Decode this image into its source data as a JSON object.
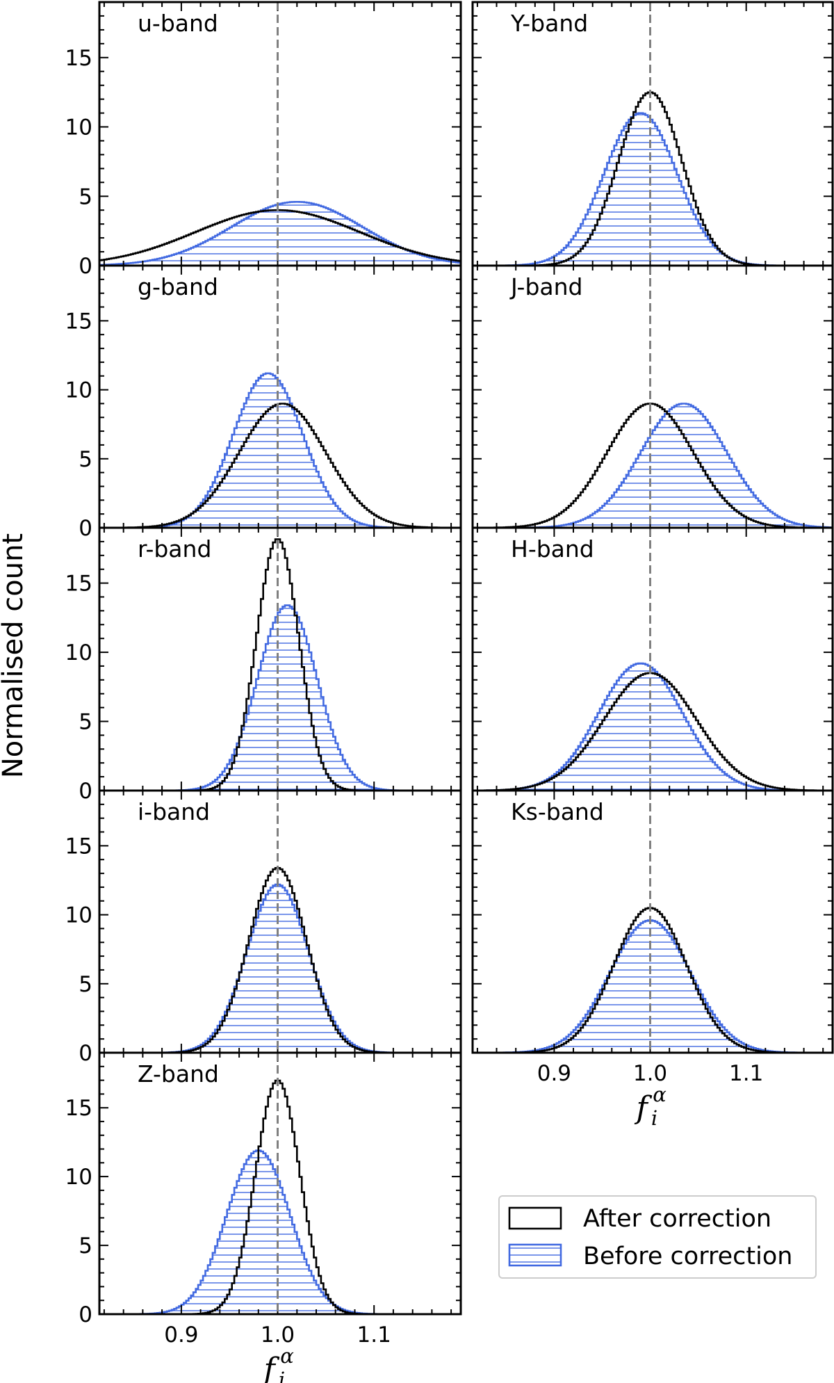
{
  "chart_data": {
    "type": "histogram",
    "y_axis_label": "Normalised count",
    "x_axis_symbol": "f",
    "x_axis_subscript": "i",
    "x_axis_superscript": "α",
    "xlim": [
      0.815,
      1.19
    ],
    "ylim": [
      0,
      19
    ],
    "x_ticks": [
      0.9,
      1.0,
      1.1
    ],
    "x_tick_labels": [
      "0.9",
      "1.0",
      "1.1"
    ],
    "y_ticks": [
      0,
      5,
      10,
      15
    ],
    "y_tick_labels": [
      "0",
      "5",
      "10",
      "15"
    ],
    "reference_line_x": 1.0,
    "legend": {
      "position": "lower-right",
      "entries": [
        "After correction",
        "Before correction"
      ]
    },
    "colors": {
      "after": "#000000",
      "before": "#4169e1",
      "reference": "#808080"
    },
    "panels": [
      {
        "band": "u-band",
        "after": {
          "mean": 1.0,
          "sigma": 0.085,
          "peak": 4.0
        },
        "before": {
          "mean": 1.02,
          "sigma": 0.068,
          "peak": 4.6
        }
      },
      {
        "band": "Y-band",
        "after": {
          "mean": 1.0,
          "sigma": 0.033,
          "peak": 12.5
        },
        "before": {
          "mean": 0.99,
          "sigma": 0.038,
          "peak": 11.0
        }
      },
      {
        "band": "g-band",
        "after": {
          "mean": 1.005,
          "sigma": 0.045,
          "peak": 9.0
        },
        "before": {
          "mean": 0.99,
          "sigma": 0.036,
          "peak": 11.2
        }
      },
      {
        "band": "J-band",
        "after": {
          "mean": 1.0,
          "sigma": 0.045,
          "peak": 9.0
        },
        "before": {
          "mean": 1.035,
          "sigma": 0.045,
          "peak": 9.0
        }
      },
      {
        "band": "r-band",
        "after": {
          "mean": 1.0,
          "sigma": 0.022,
          "peak": 18.2
        },
        "before": {
          "mean": 1.01,
          "sigma": 0.031,
          "peak": 13.4
        }
      },
      {
        "band": "H-band",
        "after": {
          "mean": 1.0,
          "sigma": 0.048,
          "peak": 8.5
        },
        "before": {
          "mean": 0.99,
          "sigma": 0.044,
          "peak": 9.2
        }
      },
      {
        "band": "i-band",
        "after": {
          "mean": 1.0,
          "sigma": 0.03,
          "peak": 13.4
        },
        "before": {
          "mean": 1.0,
          "sigma": 0.032,
          "peak": 12.2
        }
      },
      {
        "band": "Ks-band",
        "after": {
          "mean": 1.0,
          "sigma": 0.038,
          "peak": 10.5
        },
        "before": {
          "mean": 1.0,
          "sigma": 0.042,
          "peak": 9.6
        }
      },
      {
        "band": "Z-band",
        "after": {
          "mean": 1.0,
          "sigma": 0.023,
          "peak": 17.0
        },
        "before": {
          "mean": 0.98,
          "sigma": 0.033,
          "peak": 11.9
        }
      }
    ]
  }
}
